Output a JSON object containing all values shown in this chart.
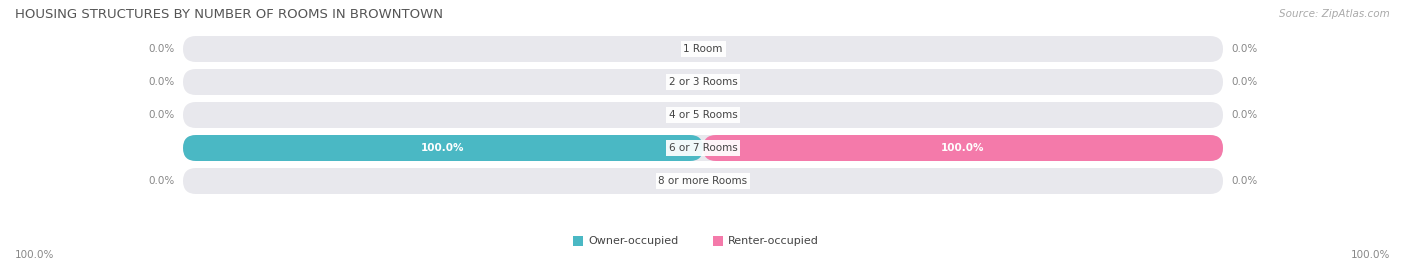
{
  "title": "HOUSING STRUCTURES BY NUMBER OF ROOMS IN BROWNTOWN",
  "source": "Source: ZipAtlas.com",
  "categories": [
    "1 Room",
    "2 or 3 Rooms",
    "4 or 5 Rooms",
    "6 or 7 Rooms",
    "8 or more Rooms"
  ],
  "owner_values": [
    0.0,
    0.0,
    0.0,
    100.0,
    0.0
  ],
  "renter_values": [
    0.0,
    0.0,
    0.0,
    100.0,
    0.0
  ],
  "owner_color": "#4ab8c4",
  "renter_color": "#f47aaa",
  "bar_bg_color": "#e8e8ed",
  "label_color_outside": "#888888",
  "label_color_inside": "#ffffff",
  "legend_owner": "Owner-occupied",
  "legend_renter": "Renter-occupied",
  "bottom_left_label": "100.0%",
  "bottom_right_label": "100.0%",
  "figsize": [
    14.06,
    2.69
  ],
  "dpi": 100
}
